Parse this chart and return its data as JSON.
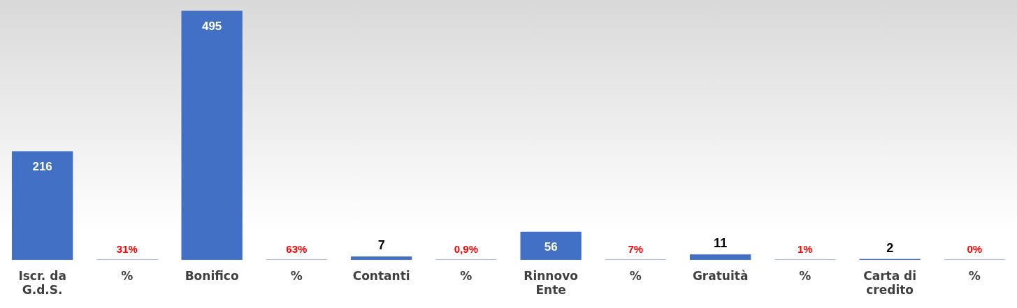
{
  "chart_data": {
    "type": "bar",
    "categories": [
      "Iscr. da G.d.S.",
      "%",
      "Bonifico",
      "%",
      "Contanti",
      "%",
      "Rinnovo Ente",
      "%",
      "Gratuità",
      "%",
      "Carta di credito",
      "%"
    ],
    "series": [
      {
        "color": "#4170c4",
        "values": [
          216,
          null,
          495,
          null,
          7,
          null,
          56,
          null,
          11,
          null,
          2,
          null
        ],
        "value_labels": [
          "216",
          null,
          "495",
          null,
          "7",
          null,
          "56",
          null,
          "11",
          null,
          "2",
          null
        ]
      },
      {
        "color": "#8faadc",
        "values": [
          null,
          0.31,
          null,
          0.63,
          null,
          0.009,
          null,
          0.07,
          null,
          0.01,
          null,
          0
        ],
        "value_labels": [
          null,
          "31%",
          null,
          "63%",
          null,
          "0,9%",
          null,
          "7%",
          null,
          "1%",
          null,
          "0%"
        ]
      }
    ],
    "grid": false,
    "legend": false,
    "tick_labels": "x"
  }
}
